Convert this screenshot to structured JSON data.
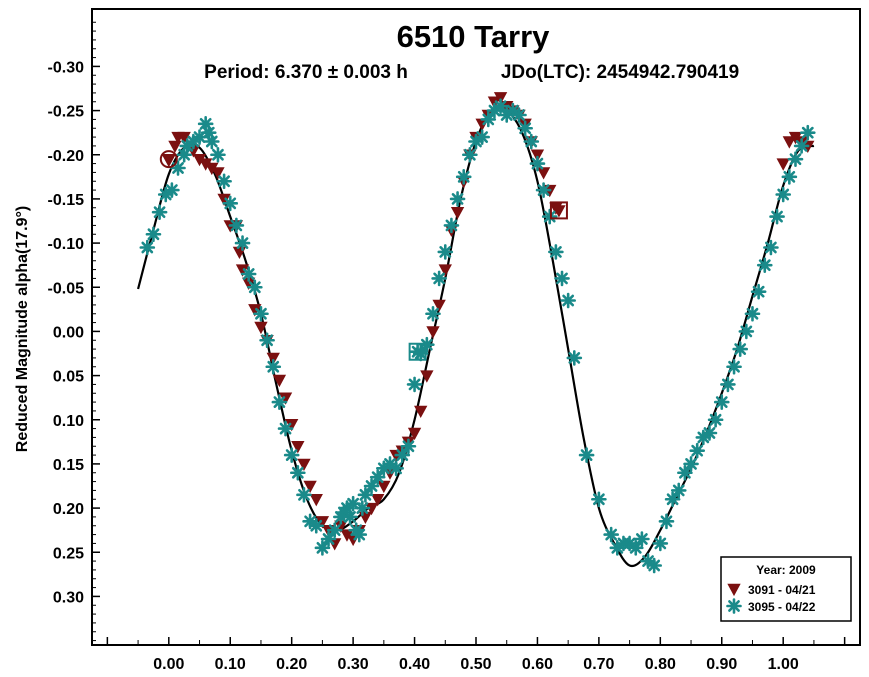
{
  "chart_data": {
    "type": "scatter",
    "title": "6510 Tarry",
    "subtitle_period": "Period: 6.370 ± 0.003 h",
    "subtitle_epoch": "JDo(LTC): 2454942.790419",
    "xlabel": "",
    "ylabel": "Reduced Magnitude alpha(17.9°)",
    "xlim": [
      -0.125,
      1.125
    ],
    "ylim": [
      -0.365,
      0.355
    ],
    "y_inverted": true,
    "x_ticks": [
      0.0,
      0.1,
      0.2,
      0.3,
      0.4,
      0.5,
      0.6,
      0.7,
      0.8,
      0.9,
      1.0
    ],
    "x_tick_labels": [
      "0.00",
      "0.10",
      "0.20",
      "0.30",
      "0.40",
      "0.50",
      "0.60",
      "0.70",
      "0.80",
      "0.90",
      "1.00"
    ],
    "y_ticks": [
      -0.3,
      -0.25,
      -0.2,
      -0.15,
      -0.1,
      -0.05,
      0.0,
      0.05,
      0.1,
      0.15,
      0.2,
      0.25,
      0.3
    ],
    "y_tick_labels": [
      "-0.30",
      "-0.25",
      "-0.20",
      "-0.15",
      "-0.10",
      "-0.05",
      "0.00",
      "0.05",
      "0.10",
      "0.15",
      "0.20",
      "0.25",
      "0.30"
    ],
    "legend": {
      "position": "bottom-right",
      "title": "Year: 2009",
      "entries": [
        "3091 - 04/21",
        "3095 - 04/22"
      ]
    },
    "series": [
      {
        "name": "3091 - 04/21",
        "marker": "triangle-down",
        "color": "#7b1010",
        "x": [
          0.0,
          0.01,
          0.015,
          0.025,
          0.04,
          0.05,
          0.06,
          0.07,
          0.08,
          0.09,
          0.1,
          0.11,
          0.115,
          0.12,
          0.13,
          0.14,
          0.15,
          0.16,
          0.17,
          0.18,
          0.19,
          0.2,
          0.21,
          0.22,
          0.23,
          0.24,
          0.25,
          0.26,
          0.27,
          0.28,
          0.29,
          0.3,
          0.31,
          0.32,
          0.33,
          0.34,
          0.35,
          0.36,
          0.37,
          0.38,
          0.39,
          0.4,
          0.41,
          0.42,
          0.43,
          0.44,
          0.45,
          0.46,
          0.47,
          0.48,
          0.49,
          0.5,
          0.51,
          0.52,
          0.53,
          0.54,
          0.55,
          0.56,
          0.57,
          0.58,
          0.59,
          0.6,
          0.61,
          0.62,
          0.63,
          1.0,
          1.01,
          1.02,
          1.03,
          1.04
        ],
        "y": [
          -0.195,
          -0.21,
          -0.22,
          -0.22,
          -0.205,
          -0.195,
          -0.19,
          -0.185,
          -0.18,
          -0.15,
          -0.12,
          -0.12,
          -0.09,
          -0.07,
          -0.055,
          -0.025,
          -0.005,
          0.01,
          0.03,
          0.055,
          0.075,
          0.105,
          0.13,
          0.15,
          0.175,
          0.19,
          0.215,
          0.225,
          0.24,
          0.22,
          0.23,
          0.235,
          0.225,
          0.21,
          0.2,
          0.19,
          0.175,
          0.16,
          0.14,
          0.135,
          0.125,
          0.115,
          0.09,
          0.05,
          0.0,
          -0.03,
          -0.07,
          -0.115,
          -0.135,
          -0.17,
          -0.2,
          -0.22,
          -0.235,
          -0.245,
          -0.26,
          -0.265,
          -0.255,
          -0.25,
          -0.245,
          -0.235,
          -0.215,
          -0.2,
          -0.18,
          -0.16,
          -0.14,
          -0.19,
          -0.215,
          -0.22,
          -0.215,
          -0.21
        ]
      },
      {
        "name": "3095 - 04/22",
        "marker": "asterisk",
        "color": "#1a8a8a",
        "x": [
          -0.035,
          -0.025,
          -0.015,
          -0.005,
          0.005,
          0.015,
          0.025,
          0.03,
          0.04,
          0.05,
          0.06,
          0.065,
          0.07,
          0.08,
          0.09,
          0.1,
          0.11,
          0.12,
          0.13,
          0.14,
          0.15,
          0.16,
          0.17,
          0.18,
          0.19,
          0.2,
          0.21,
          0.22,
          0.23,
          0.24,
          0.25,
          0.26,
          0.27,
          0.28,
          0.285,
          0.29,
          0.295,
          0.3,
          0.305,
          0.31,
          0.315,
          0.32,
          0.33,
          0.34,
          0.35,
          0.36,
          0.37,
          0.38,
          0.39,
          0.4,
          0.41,
          0.42,
          0.43,
          0.44,
          0.45,
          0.46,
          0.47,
          0.48,
          0.49,
          0.5,
          0.51,
          0.52,
          0.53,
          0.54,
          0.55,
          0.56,
          0.57,
          0.58,
          0.59,
          0.6,
          0.61,
          0.62,
          0.63,
          0.64,
          0.65,
          0.66,
          0.68,
          0.7,
          0.72,
          0.73,
          0.74,
          0.75,
          0.76,
          0.77,
          0.78,
          0.79,
          0.8,
          0.81,
          0.82,
          0.83,
          0.84,
          0.85,
          0.86,
          0.87,
          0.88,
          0.89,
          0.9,
          0.91,
          0.92,
          0.93,
          0.94,
          0.95,
          0.96,
          0.97,
          0.98,
          0.99,
          1.0,
          1.01,
          1.02,
          1.03,
          1.04
        ],
        "y": [
          -0.095,
          -0.11,
          -0.135,
          -0.155,
          -0.16,
          -0.185,
          -0.2,
          -0.21,
          -0.215,
          -0.22,
          -0.235,
          -0.225,
          -0.215,
          -0.2,
          -0.17,
          -0.145,
          -0.12,
          -0.1,
          -0.065,
          -0.05,
          -0.02,
          0.01,
          0.04,
          0.08,
          0.11,
          0.14,
          0.16,
          0.185,
          0.215,
          0.22,
          0.245,
          0.235,
          0.225,
          0.21,
          0.205,
          0.2,
          0.21,
          0.195,
          0.225,
          0.23,
          0.2,
          0.185,
          0.175,
          0.165,
          0.155,
          0.15,
          0.155,
          0.14,
          0.13,
          0.06,
          0.025,
          0.015,
          -0.02,
          -0.06,
          -0.09,
          -0.12,
          -0.15,
          -0.175,
          -0.2,
          -0.215,
          -0.22,
          -0.24,
          -0.25,
          -0.255,
          -0.245,
          -0.25,
          -0.245,
          -0.23,
          -0.215,
          -0.19,
          -0.16,
          -0.13,
          -0.09,
          -0.06,
          -0.035,
          0.03,
          0.14,
          0.19,
          0.23,
          0.245,
          0.24,
          0.24,
          0.245,
          0.235,
          0.26,
          0.265,
          0.24,
          0.215,
          0.19,
          0.18,
          0.16,
          0.15,
          0.135,
          0.12,
          0.115,
          0.1,
          0.08,
          0.06,
          0.04,
          0.02,
          0.0,
          -0.02,
          -0.045,
          -0.075,
          -0.095,
          -0.13,
          -0.155,
          -0.175,
          -0.195,
          -0.21,
          -0.225
        ]
      }
    ],
    "fit_curve": {
      "name": "Fourier fit",
      "color": "#000000",
      "x": [
        -0.05,
        -0.025,
        0.0,
        0.025,
        0.05,
        0.075,
        0.1,
        0.125,
        0.15,
        0.175,
        0.2,
        0.225,
        0.25,
        0.275,
        0.3,
        0.325,
        0.35,
        0.375,
        0.4,
        0.425,
        0.45,
        0.475,
        0.5,
        0.525,
        0.55,
        0.575,
        0.6,
        0.625,
        0.65,
        0.675,
        0.7,
        0.725,
        0.75,
        0.775,
        0.8,
        0.825,
        0.85,
        0.875,
        0.9,
        0.925,
        0.95,
        0.975,
        1.0,
        1.025,
        1.05
      ],
      "y": [
        -0.048,
        -0.115,
        -0.178,
        -0.208,
        -0.208,
        -0.178,
        -0.13,
        -0.08,
        -0.02,
        0.06,
        0.135,
        0.19,
        0.22,
        0.225,
        0.215,
        0.2,
        0.19,
        0.16,
        0.1,
        0.02,
        -0.06,
        -0.15,
        -0.215,
        -0.25,
        -0.25,
        -0.225,
        -0.17,
        -0.08,
        0.02,
        0.12,
        0.2,
        0.24,
        0.265,
        0.255,
        0.225,
        0.19,
        0.155,
        0.115,
        0.07,
        0.02,
        -0.04,
        -0.1,
        -0.165,
        -0.205,
        -0.21
      ]
    },
    "highlighted_points": [
      {
        "series": "3091 - 04/21",
        "shape": "circle",
        "x": 0.0,
        "y": -0.195
      },
      {
        "series": "3095 - 04/22",
        "shape": "square",
        "x": 0.405,
        "y": 0.023
      },
      {
        "series": "3091 - 04/21",
        "shape": "square",
        "x": 0.635,
        "y": -0.137
      }
    ]
  }
}
